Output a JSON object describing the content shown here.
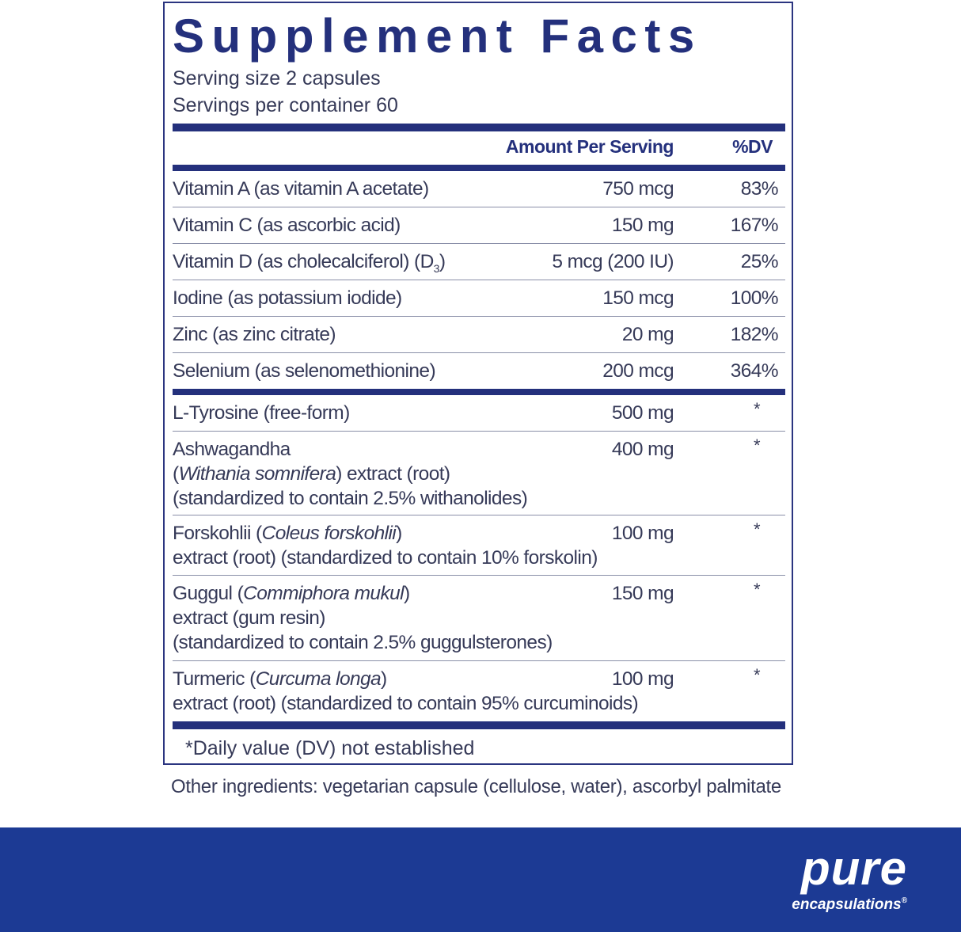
{
  "title": "Supplement Facts",
  "serving_size": "Serving size  2 capsules",
  "servings_per_container": "Servings per container  60",
  "header": {
    "amount": "Amount Per Serving",
    "dv": "%DV"
  },
  "vitamins": [
    {
      "name": "Vitamin A (as vitamin A acetate)",
      "amount": "750 mcg",
      "dv": "83%"
    },
    {
      "name": "Vitamin C (as ascorbic acid)",
      "amount": "150 mg",
      "dv": "167%"
    },
    {
      "name": "Vitamin D (as cholecalciferol) (D",
      "sub": "3",
      "close": ")",
      "amount": "5 mcg (200 IU)",
      "dv": "25%"
    },
    {
      "name": "Iodine (as potassium iodide)",
      "amount": "150 mcg",
      "dv": "100%"
    },
    {
      "name": "Zinc (as zinc citrate)",
      "amount": "20 mg",
      "dv": "182%"
    },
    {
      "name": "Selenium (as selenomethionine)",
      "amount": "200 mcg",
      "dv": "364%"
    }
  ],
  "others": [
    {
      "l1": "L-Tyrosine (free-form)",
      "amount": "500 mg",
      "dv": "*"
    },
    {
      "l1": "Ashwagandha",
      "l2a": "(",
      "l2i": "Withania somnifera",
      "l2b": ") extract (root)",
      "l3": "(standardized to contain 2.5% withanolides)",
      "amount": "400 mg",
      "dv": "*"
    },
    {
      "l1a": "Forskohlii (",
      "l1i": "Coleus forskohlii",
      "l1b": ")",
      "l2": "extract (root) (standardized to contain 10% forskolin)",
      "amount": "100 mg",
      "dv": "*"
    },
    {
      "l1a": "Guggul (",
      "l1i": "Commiphora mukul",
      "l1b": ")",
      "l2": "extract (gum resin)",
      "l3": "(standardized to contain 2.5% guggulsterones)",
      "amount": "150 mg",
      "dv": "*"
    },
    {
      "l1a": "Turmeric (",
      "l1i": "Curcuma longa",
      "l1b": ")",
      "l2": "extract (root) (standardized to contain 95% curcuminoids)",
      "amount": "100 mg",
      "dv": "*"
    }
  ],
  "footnote": "*Daily value (DV) not established",
  "other_ingredients": "Other ingredients: vegetarian capsule (cellulose, water), ascorbyl palmitate",
  "logo": {
    "line1": "pure",
    "line2": "encapsulations",
    "mark": "®"
  },
  "colors": {
    "navy": "#24307c",
    "banner": "#1c3a94"
  }
}
